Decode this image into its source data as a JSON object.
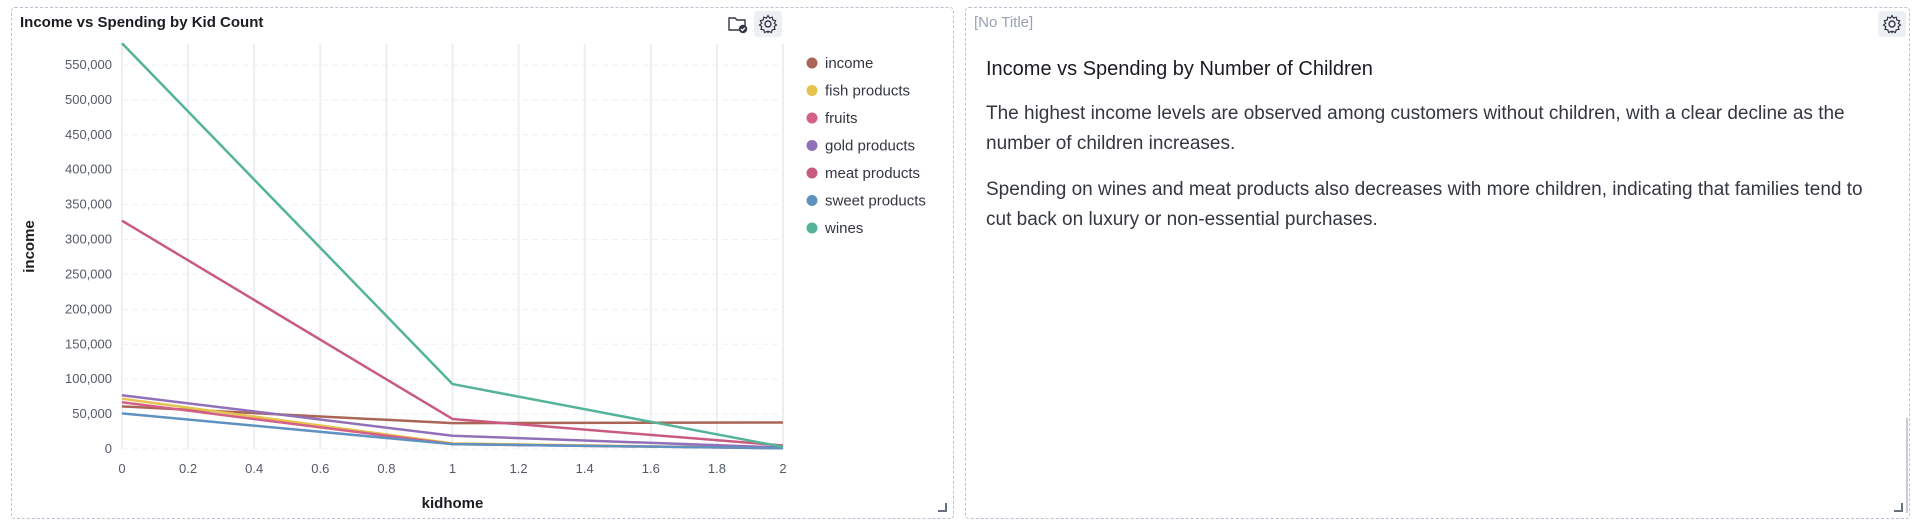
{
  "chart_panel": {
    "title": "Income vs Spending by Kid Count",
    "icons": [
      "folder-check-icon",
      "gear-icon"
    ]
  },
  "text_panel": {
    "title": "[No Title]",
    "heading": "Income vs Spending by Number of Children",
    "paragraphs": [
      "The highest income levels are observed among customers without children, with a clear decline as the number of children increases.",
      "Spending on wines and meat products also decreases with more children, indicating that families tend to cut back on luxury or non-essential purchases."
    ]
  },
  "chart_data": {
    "type": "line",
    "title": "Income vs Spending by Kid Count",
    "xlabel": "kidhome",
    "ylabel": "income",
    "x": [
      0,
      1,
      2
    ],
    "xlim": [
      0,
      2
    ],
    "ylim": [
      0,
      580000
    ],
    "xticks": [
      0,
      0.2,
      0.4,
      0.6,
      0.8,
      1,
      1.2,
      1.4,
      1.6,
      1.8,
      2
    ],
    "yticks": [
      0,
      50000,
      100000,
      150000,
      200000,
      250000,
      300000,
      350000,
      400000,
      450000,
      500000,
      550000
    ],
    "grid": true,
    "legend_position": "right",
    "series": [
      {
        "name": "income",
        "color": "#aa6556",
        "values": [
          61000,
          37000,
          38000
        ]
      },
      {
        "name": "fish products",
        "color": "#e7c24f",
        "values": [
          72000,
          8000,
          1000
        ]
      },
      {
        "name": "fruits",
        "color": "#d36086",
        "values": [
          67000,
          7000,
          1000
        ]
      },
      {
        "name": "gold products",
        "color": "#9170b8",
        "values": [
          77000,
          19000,
          2000
        ]
      },
      {
        "name": "meat products",
        "color": "#ca5b80",
        "values": [
          327000,
          43000,
          5000
        ]
      },
      {
        "name": "sweet products",
        "color": "#6092c0",
        "values": [
          51000,
          7000,
          1000
        ]
      },
      {
        "name": "wines",
        "color": "#54b399",
        "values": [
          581000,
          93000,
          3000
        ]
      }
    ]
  }
}
